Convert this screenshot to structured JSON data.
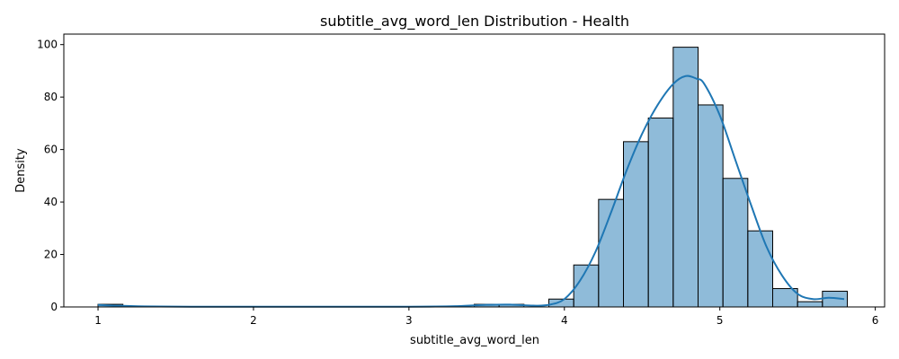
{
  "chart_data": {
    "type": "bar",
    "title": "subtitle_avg_word_len Distribution - Health",
    "xlabel": "subtitle_avg_word_len",
    "ylabel": "Density",
    "xlim": [
      0.78,
      6.06
    ],
    "ylim": [
      0,
      104
    ],
    "xticks": [
      1,
      2,
      3,
      4,
      5,
      6
    ],
    "yticks": [
      0,
      20,
      40,
      60,
      80,
      100
    ],
    "grid": false,
    "bar_color": "#1f77b4",
    "bar_opacity": 0.5,
    "kde_color": "#1f77b4",
    "bins": [
      {
        "x0": 1.0,
        "x1": 1.16,
        "count": 1
      },
      {
        "x0": 1.16,
        "x1": 1.32,
        "count": 0
      },
      {
        "x0": 1.32,
        "x1": 1.48,
        "count": 0
      },
      {
        "x0": 1.48,
        "x1": 1.64,
        "count": 0
      },
      {
        "x0": 1.64,
        "x1": 1.8,
        "count": 0
      },
      {
        "x0": 1.8,
        "x1": 1.96,
        "count": 0
      },
      {
        "x0": 1.96,
        "x1": 2.12,
        "count": 0
      },
      {
        "x0": 2.12,
        "x1": 2.28,
        "count": 0
      },
      {
        "x0": 2.28,
        "x1": 2.44,
        "count": 0
      },
      {
        "x0": 2.44,
        "x1": 2.6,
        "count": 0
      },
      {
        "x0": 2.6,
        "x1": 2.76,
        "count": 0
      },
      {
        "x0": 2.76,
        "x1": 2.92,
        "count": 0
      },
      {
        "x0": 2.92,
        "x1": 3.08,
        "count": 0
      },
      {
        "x0": 3.08,
        "x1": 3.24,
        "count": 0
      },
      {
        "x0": 3.24,
        "x1": 3.42,
        "count": 0
      },
      {
        "x0": 3.42,
        "x1": 3.58,
        "count": 1
      },
      {
        "x0": 3.58,
        "x1": 3.74,
        "count": 1
      },
      {
        "x0": 3.74,
        "x1": 3.9,
        "count": 0
      },
      {
        "x0": 3.9,
        "x1": 4.06,
        "count": 3
      },
      {
        "x0": 4.06,
        "x1": 4.22,
        "count": 16
      },
      {
        "x0": 4.22,
        "x1": 4.38,
        "count": 41
      },
      {
        "x0": 4.38,
        "x1": 4.54,
        "count": 63
      },
      {
        "x0": 4.54,
        "x1": 4.7,
        "count": 72
      },
      {
        "x0": 4.7,
        "x1": 4.86,
        "count": 99
      },
      {
        "x0": 4.86,
        "x1": 5.02,
        "count": 77
      },
      {
        "x0": 5.02,
        "x1": 5.18,
        "count": 49
      },
      {
        "x0": 5.18,
        "x1": 5.34,
        "count": 29
      },
      {
        "x0": 5.34,
        "x1": 5.5,
        "count": 7
      },
      {
        "x0": 5.5,
        "x1": 5.66,
        "count": 2
      },
      {
        "x0": 5.66,
        "x1": 5.82,
        "count": 6
      }
    ],
    "kde": {
      "x": [
        1.0,
        1.1,
        1.3,
        1.6,
        2.0,
        2.5,
        3.0,
        3.3,
        3.5,
        3.65,
        3.8,
        3.9,
        4.0,
        4.1,
        4.2,
        4.3,
        4.4,
        4.5,
        4.6,
        4.7,
        4.78,
        4.85,
        4.9,
        5.0,
        5.1,
        5.2,
        5.3,
        5.4,
        5.5,
        5.6,
        5.7,
        5.8
      ],
      "y": [
        0.8,
        0.5,
        0.2,
        0.1,
        0.1,
        0.1,
        0.1,
        0.3,
        0.8,
        0.9,
        0.5,
        0.8,
        3,
        10,
        21,
        36,
        52,
        66,
        77,
        85,
        88,
        87,
        85,
        73,
        56,
        39,
        23,
        12,
        5,
        3,
        3.5,
        3
      ]
    }
  }
}
